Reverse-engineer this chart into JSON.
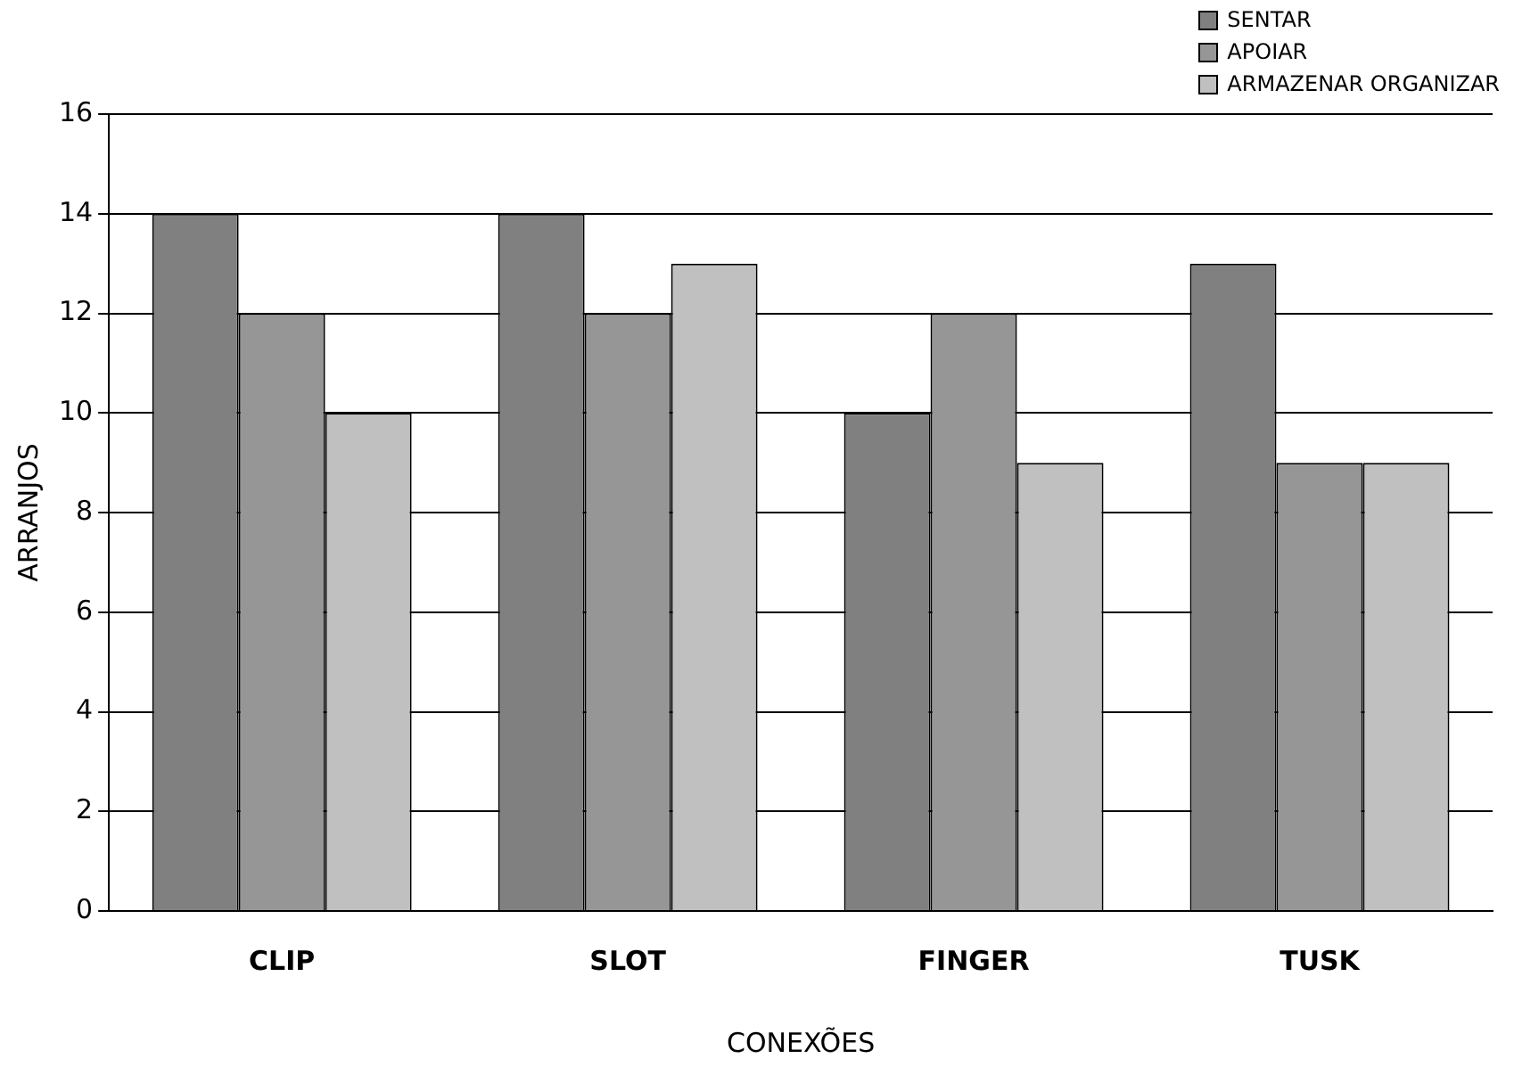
{
  "chart_data": {
    "type": "bar",
    "xlabel": "CONEXÕES",
    "ylabel": "ARRANJOS",
    "categories": [
      "CLIP",
      "SLOT",
      "FINGER",
      "TUSK"
    ],
    "series": [
      {
        "name": "SENTAR",
        "color": "#808080",
        "values": [
          14,
          14,
          10,
          13
        ]
      },
      {
        "name": "APOIAR",
        "color": "#969696",
        "values": [
          12,
          12,
          12,
          9
        ]
      },
      {
        "name": "ARMAZENAR ORGANIZAR",
        "color": "#c0c0c0",
        "values": [
          10,
          13,
          9,
          9
        ]
      }
    ],
    "ylim": [
      0,
      16
    ],
    "yticks": [
      0,
      2,
      4,
      6,
      8,
      10,
      12,
      14,
      16
    ],
    "grid": "y",
    "legend": "top right"
  }
}
